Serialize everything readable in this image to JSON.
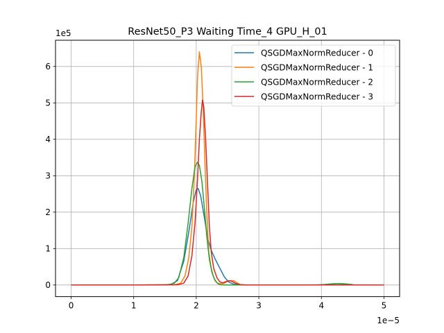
{
  "chart_data": {
    "type": "line",
    "title": "ResNet50_P3 Waiting Time_4 GPU_H_01",
    "xlabel": "",
    "ylabel": "",
    "x_scale_label": "1e−5",
    "y_scale_label": "1e5",
    "xlim": [
      -0.25,
      5.25
    ],
    "ylim": [
      -0.32,
      6.72
    ],
    "x_ticks": [
      0,
      1,
      2,
      3,
      4,
      5
    ],
    "x_tick_labels": [
      "0",
      "1",
      "2",
      "3",
      "4",
      "5"
    ],
    "y_ticks": [
      0,
      1,
      2,
      3,
      4,
      5,
      6
    ],
    "y_tick_labels": [
      "0",
      "1",
      "2",
      "3",
      "4",
      "5",
      "6"
    ],
    "grid": true,
    "legend_position": "top-right",
    "series": [
      {
        "name": "QSGDMaxNormReducer - 0",
        "color": "#1f77b4",
        "points": [
          [
            0,
            0
          ],
          [
            1.0,
            0
          ],
          [
            1.5,
            0.003
          ],
          [
            1.6,
            0.02
          ],
          [
            1.7,
            0.12
          ],
          [
            1.8,
            0.65
          ],
          [
            1.88,
            1.45
          ],
          [
            1.95,
            2.25
          ],
          [
            2.0,
            2.62
          ],
          [
            2.03,
            2.65
          ],
          [
            2.07,
            2.45
          ],
          [
            2.12,
            1.95
          ],
          [
            2.18,
            1.3
          ],
          [
            2.24,
            0.95
          ],
          [
            2.3,
            0.72
          ],
          [
            2.38,
            0.45
          ],
          [
            2.45,
            0.22
          ],
          [
            2.52,
            0.08
          ],
          [
            2.6,
            0.02
          ],
          [
            2.7,
            0.005
          ],
          [
            2.8,
            0
          ],
          [
            3.5,
            0
          ],
          [
            3.9,
            0
          ],
          [
            4.05,
            0.01
          ],
          [
            4.15,
            0.03
          ],
          [
            4.25,
            0.04
          ],
          [
            4.35,
            0.03
          ],
          [
            4.45,
            0.01
          ],
          [
            4.55,
            0
          ],
          [
            5.0,
            0
          ]
        ]
      },
      {
        "name": "QSGDMaxNormReducer - 1",
        "color": "#ff7f0e",
        "points": [
          [
            0,
            0
          ],
          [
            1.0,
            0
          ],
          [
            1.65,
            0.005
          ],
          [
            1.75,
            0.05
          ],
          [
            1.82,
            0.25
          ],
          [
            1.88,
            0.75
          ],
          [
            1.93,
            1.6
          ],
          [
            1.97,
            3.0
          ],
          [
            2.0,
            4.6
          ],
          [
            2.02,
            5.7
          ],
          [
            2.05,
            6.4
          ],
          [
            2.08,
            6.0
          ],
          [
            2.11,
            4.9
          ],
          [
            2.14,
            3.3
          ],
          [
            2.17,
            1.9
          ],
          [
            2.2,
            0.9
          ],
          [
            2.24,
            0.45
          ],
          [
            2.28,
            0.2
          ],
          [
            2.33,
            0.06
          ],
          [
            2.38,
            0.03
          ],
          [
            2.45,
            0.05
          ],
          [
            2.5,
            0.1
          ],
          [
            2.55,
            0.12
          ],
          [
            2.6,
            0.12
          ],
          [
            2.65,
            0.06
          ],
          [
            2.7,
            0.01
          ],
          [
            2.8,
            0
          ],
          [
            5.0,
            0
          ]
        ]
      },
      {
        "name": "QSGDMaxNormReducer - 2",
        "color": "#2ca02c",
        "points": [
          [
            0,
            0
          ],
          [
            1.0,
            0
          ],
          [
            1.55,
            0.005
          ],
          [
            1.65,
            0.05
          ],
          [
            1.72,
            0.2
          ],
          [
            1.8,
            0.75
          ],
          [
            1.87,
            1.7
          ],
          [
            1.93,
            2.65
          ],
          [
            1.98,
            3.25
          ],
          [
            2.02,
            3.37
          ],
          [
            2.05,
            3.28
          ],
          [
            2.09,
            2.85
          ],
          [
            2.13,
            2.1
          ],
          [
            2.17,
            1.3
          ],
          [
            2.21,
            0.7
          ],
          [
            2.25,
            0.35
          ],
          [
            2.3,
            0.12
          ],
          [
            2.35,
            0.03
          ],
          [
            2.4,
            0.005
          ],
          [
            2.5,
            0
          ],
          [
            3.8,
            0
          ],
          [
            4.0,
            0.005
          ],
          [
            4.1,
            0.02
          ],
          [
            4.2,
            0.035
          ],
          [
            4.3,
            0.04
          ],
          [
            4.4,
            0.03
          ],
          [
            4.5,
            0.01
          ],
          [
            4.6,
            0
          ],
          [
            5.0,
            0
          ]
        ]
      },
      {
        "name": "QSGDMaxNormReducer - 3",
        "color": "#d62728",
        "points": [
          [
            0,
            0
          ],
          [
            1.0,
            0
          ],
          [
            1.7,
            0.005
          ],
          [
            1.8,
            0.05
          ],
          [
            1.87,
            0.25
          ],
          [
            1.93,
            0.8
          ],
          [
            1.98,
            1.7
          ],
          [
            2.02,
            2.9
          ],
          [
            2.05,
            4.0
          ],
          [
            2.08,
            4.75
          ],
          [
            2.1,
            5.08
          ],
          [
            2.12,
            4.9
          ],
          [
            2.15,
            4.0
          ],
          [
            2.18,
            2.8
          ],
          [
            2.21,
            1.6
          ],
          [
            2.24,
            0.9
          ],
          [
            2.28,
            0.45
          ],
          [
            2.33,
            0.2
          ],
          [
            2.38,
            0.08
          ],
          [
            2.43,
            0.06
          ],
          [
            2.48,
            0.1
          ],
          [
            2.53,
            0.12
          ],
          [
            2.57,
            0.1
          ],
          [
            2.62,
            0.05
          ],
          [
            2.7,
            0.01
          ],
          [
            2.8,
            0
          ],
          [
            5.0,
            0
          ]
        ]
      }
    ]
  }
}
